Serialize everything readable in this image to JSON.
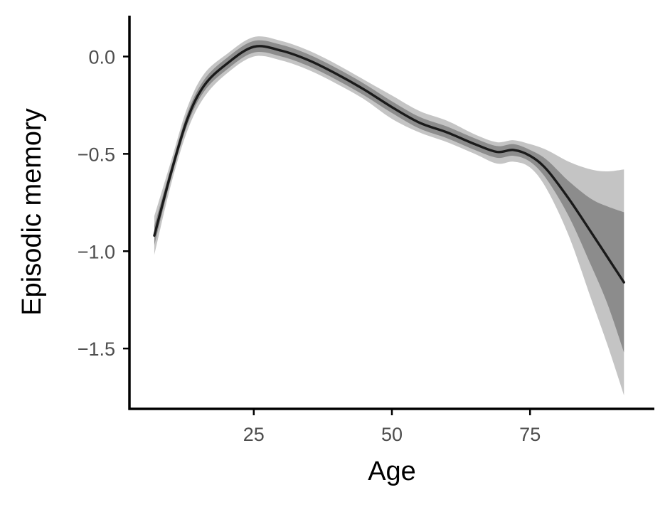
{
  "chart_data": {
    "type": "line",
    "title": "",
    "xlabel": "Age",
    "ylabel": "Episodic memory",
    "xlim": [
      2.5,
      97.5
    ],
    "ylim": [
      -1.81,
      0.21
    ],
    "x_ticks": [
      25,
      50,
      75
    ],
    "x_tick_labels": [
      "25",
      "50",
      "75"
    ],
    "y_ticks": [
      0.0,
      -0.5,
      -1.0,
      -1.5
    ],
    "y_tick_labels": [
      "0.0",
      "−0.5",
      "−1.0",
      "−1.5"
    ],
    "grid": false,
    "legend": "none",
    "colors": {
      "line": "#1a1a1a",
      "inner_band": "#8c8c8c",
      "outer_band": "#c4c4c4",
      "axis": "#000000",
      "tick_label": "#4d4d4d"
    },
    "series": [
      {
        "x": [
          7,
          10,
          13,
          16,
          20,
          25,
          30,
          35,
          40,
          45,
          50,
          55,
          60,
          65,
          69,
          72,
          75,
          78,
          82,
          86,
          89,
          92
        ],
        "y": [
          -0.92,
          -0.6,
          -0.32,
          -0.15,
          -0.04,
          0.05,
          0.03,
          -0.02,
          -0.09,
          -0.17,
          -0.26,
          -0.34,
          -0.39,
          -0.45,
          -0.49,
          -0.48,
          -0.51,
          -0.58,
          -0.73,
          -0.9,
          -1.03,
          -1.16
        ],
        "inner_band": {
          "lower": [
            -0.97,
            -0.63,
            -0.35,
            -0.18,
            -0.07,
            0.02,
            0.0,
            -0.05,
            -0.12,
            -0.2,
            -0.29,
            -0.37,
            -0.42,
            -0.48,
            -0.52,
            -0.51,
            -0.54,
            -0.63,
            -0.82,
            -1.07,
            -1.27,
            -1.52
          ],
          "upper": [
            -0.87,
            -0.57,
            -0.29,
            -0.12,
            -0.01,
            0.08,
            0.06,
            0.01,
            -0.06,
            -0.14,
            -0.23,
            -0.31,
            -0.36,
            -0.42,
            -0.46,
            -0.45,
            -0.48,
            -0.53,
            -0.64,
            -0.73,
            -0.77,
            -0.8
          ]
        },
        "outer_band": {
          "lower": [
            -1.02,
            -0.66,
            -0.38,
            -0.21,
            -0.09,
            0.0,
            -0.02,
            -0.07,
            -0.14,
            -0.22,
            -0.32,
            -0.39,
            -0.44,
            -0.5,
            -0.55,
            -0.54,
            -0.57,
            -0.68,
            -0.92,
            -1.24,
            -1.48,
            -1.74
          ],
          "upper": [
            -0.82,
            -0.54,
            -0.26,
            -0.09,
            0.01,
            0.1,
            0.08,
            0.03,
            -0.04,
            -0.12,
            -0.2,
            -0.28,
            -0.33,
            -0.4,
            -0.44,
            -0.43,
            -0.45,
            -0.48,
            -0.54,
            -0.58,
            -0.59,
            -0.58
          ]
        }
      }
    ]
  }
}
